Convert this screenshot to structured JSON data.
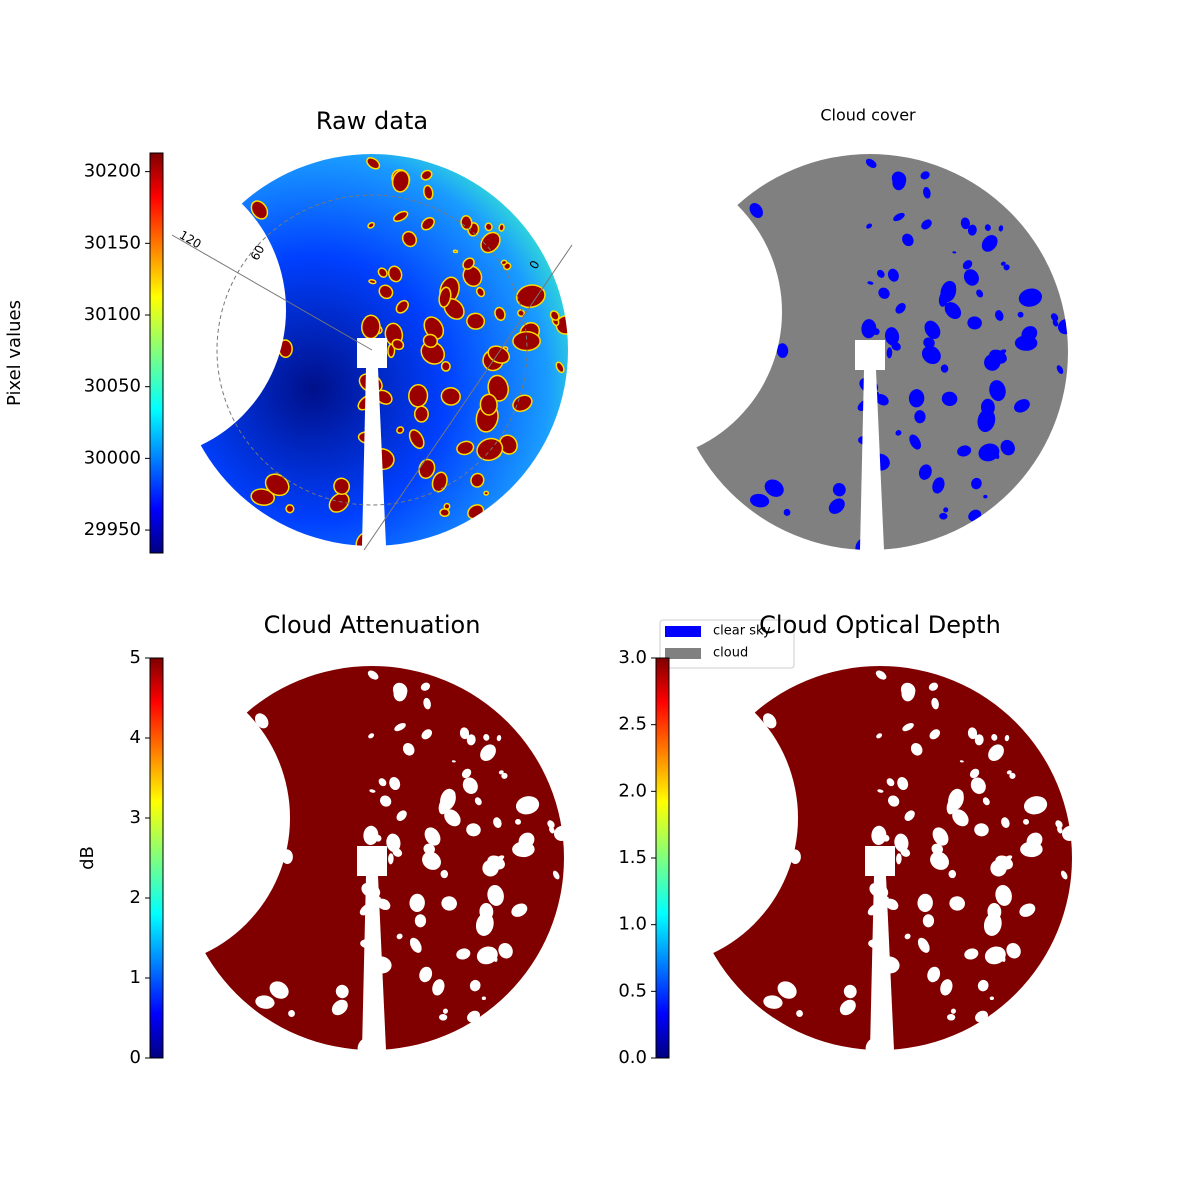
{
  "chart_data": [
    {
      "type": "image",
      "title": "Raw data",
      "colormap": "jet",
      "colorbar_label": "Pixel values",
      "ylim": [
        29934,
        30213
      ],
      "yticks": [
        29950,
        30000,
        30050,
        30100,
        30150,
        30200
      ],
      "annotations": [
        "120",
        "60",
        "0"
      ]
    },
    {
      "type": "image",
      "title": "Cloud cover",
      "series": [
        {
          "name": "clear sky",
          "color": "#0000ff"
        },
        {
          "name": "cloud",
          "color": "#808080"
        }
      ]
    },
    {
      "type": "image",
      "title": "Cloud Attenuation",
      "colormap": "jet",
      "colorbar_label": "dB",
      "ylim": [
        0,
        5
      ],
      "yticks": [
        0,
        1,
        2,
        3,
        4,
        5
      ]
    },
    {
      "type": "image",
      "title": "Cloud Optical Depth",
      "colormap": "jet",
      "ylim": [
        0,
        3
      ],
      "yticks": [
        {
          "value": 0,
          "label": "0.0"
        },
        0.5,
        {
          "value": 1,
          "label": "1.0"
        },
        1.5,
        {
          "value": 2,
          "label": "2.0"
        },
        2.5,
        {
          "value": 3,
          "label": "3.0"
        }
      ]
    }
  ]
}
